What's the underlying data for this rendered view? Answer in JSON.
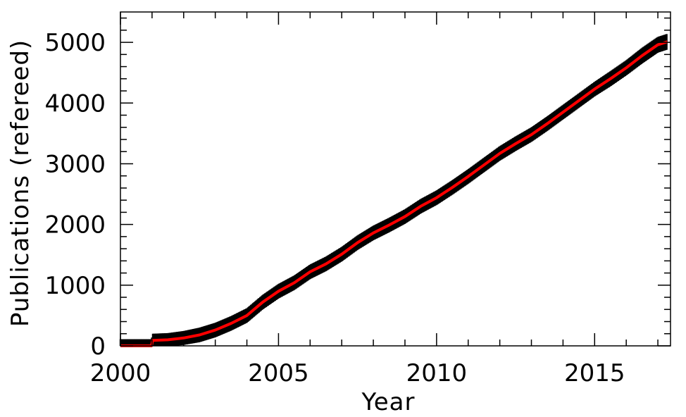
{
  "chart_data": {
    "type": "line",
    "title": "",
    "xlabel": "Year",
    "ylabel": "Publications (refereed)",
    "xlim": [
      2000,
      2017.4
    ],
    "ylim": [
      0,
      5500
    ],
    "grid": false,
    "legend": "none",
    "x_ticks": [
      2000,
      2005,
      2010,
      2015
    ],
    "y_ticks": [
      0,
      1000,
      2000,
      3000,
      4000,
      5000
    ],
    "x_tick_labels": [
      "2000",
      "2005",
      "2010",
      "2015"
    ],
    "y_tick_labels": [
      "0",
      "1000",
      "2000",
      "3000",
      "4000",
      "5000"
    ],
    "colors": {
      "fit_line": "#ff0000",
      "error_bars": "#000000",
      "axes": "#000000"
    },
    "series": [
      {
        "kind": "cumulative-with-errorbars",
        "x": [
          2000.0,
          2000.5,
          2000.98,
          2001.02,
          2001.5,
          2002.0,
          2002.5,
          2003.0,
          2003.5,
          2004.0,
          2004.5,
          2005.0,
          2005.5,
          2006.0,
          2006.5,
          2007.0,
          2007.5,
          2008.0,
          2008.5,
          2009.0,
          2009.5,
          2010.0,
          2010.5,
          2011.0,
          2011.5,
          2012.0,
          2012.5,
          2013.0,
          2013.5,
          2014.0,
          2014.5,
          2015.0,
          2015.5,
          2016.0,
          2016.5,
          2017.0,
          2017.3
        ],
        "values": [
          0,
          0,
          0,
          90,
          100,
          130,
          180,
          260,
          370,
          500,
          720,
          900,
          1040,
          1220,
          1350,
          1510,
          1700,
          1860,
          1990,
          2130,
          2300,
          2440,
          2610,
          2790,
          2980,
          3170,
          3330,
          3480,
          3660,
          3850,
          4040,
          4230,
          4400,
          4580,
          4780,
          4960,
          5010
        ],
        "error": [
          110,
          110,
          110,
          110,
          110,
          115,
          120,
          120,
          120,
          120,
          120,
          120,
          120,
          120,
          120,
          120,
          120,
          120,
          120,
          120,
          120,
          120,
          120,
          120,
          120,
          120,
          120,
          120,
          120,
          120,
          120,
          120,
          125,
          125,
          130,
          130,
          130
        ]
      }
    ]
  }
}
